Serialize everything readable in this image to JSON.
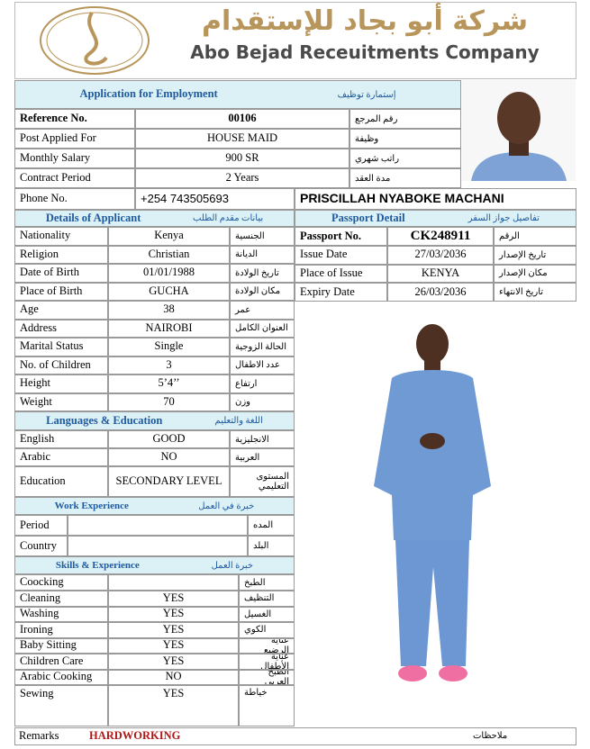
{
  "header": {
    "arabic_name": "شركة أبو بجاد للإستقدام",
    "english_name": "Abo Bejad Receuitments Company"
  },
  "application": {
    "title": "Application for Employment",
    "title_ar": "إستمارة توظيف"
  },
  "top_rows": [
    {
      "label": "Reference No.",
      "value": "00106",
      "label_ar": "رقم المرجع"
    },
    {
      "label": "Post Applied For",
      "value": "HOUSE MAID",
      "label_ar": "وظيفة"
    },
    {
      "label": "Monthly Salary",
      "value": "900 SR",
      "label_ar": "راتب شهري"
    },
    {
      "label": "Contract Period",
      "value": "2 Years",
      "label_ar": "مدة العقد"
    }
  ],
  "phone": {
    "label": "Phone No.",
    "value": "+254 743505693"
  },
  "candidate_name": "PRISCILLAH NYABOKE MACHANI",
  "applicant": {
    "title": "Details of Applicant",
    "title_ar": "بيانات مقدم الطلب",
    "rows": [
      {
        "label": "Nationality",
        "value": "Kenya",
        "label_ar": "الجنسية"
      },
      {
        "label": "Religion",
        "value": "Christian",
        "label_ar": "الديانة"
      },
      {
        "label": "Date of Birth",
        "value": "01/01/1988",
        "label_ar": "تاريخ الولادة"
      },
      {
        "label": "Place of Birth",
        "value": "GUCHA",
        "label_ar": "مكان الولادة"
      },
      {
        "label": "Age",
        "value": "38",
        "label_ar": "عمر"
      },
      {
        "label": "Address",
        "value": "NAIROBI",
        "label_ar": "العنوان الكامل"
      },
      {
        "label": "Marital Status",
        "value": "Single",
        "label_ar": "الحالة الزوجية"
      },
      {
        "label": "No. of Children",
        "value": "3",
        "label_ar": "عدد الاطفال"
      },
      {
        "label": "Height",
        "value": "5’4’’",
        "label_ar": "ارتفاع"
      },
      {
        "label": "Weight",
        "value": "70",
        "label_ar": "وزن"
      }
    ]
  },
  "passport": {
    "title": "Passport Detail",
    "title_ar": "تفاصيل جواز السفر",
    "rows": [
      {
        "label": "Passport No.",
        "value": "CK248911",
        "label_ar": "الرقم"
      },
      {
        "label": "Issue Date",
        "value": "27/03/2036",
        "label_ar": "تاريخ الإصدار"
      },
      {
        "label": "Place of Issue",
        "value": "KENYA",
        "label_ar": "مكان الإصدار"
      },
      {
        "label": "Expiry Date",
        "value": "26/03/2036",
        "label_ar": "تاريخ الانتهاء"
      }
    ]
  },
  "languages": {
    "title": "Languages & Education",
    "title_ar": "اللغة والتعليم",
    "rows": [
      {
        "label": "English",
        "value": "GOOD",
        "label_ar": "الانجليزية"
      },
      {
        "label": "Arabic",
        "value": "NO",
        "label_ar": "العربية"
      },
      {
        "label": "Education",
        "value": "SECONDARY LEVEL",
        "label_ar": "المستوى التعليمي"
      }
    ]
  },
  "work_experience": {
    "title": "Work Experience",
    "title_ar": "خبرة في العمل",
    "rows": [
      {
        "label": "Period",
        "label_ar": "المده"
      },
      {
        "label": "Country",
        "label_ar": "البلد"
      }
    ]
  },
  "skills": {
    "title": "Skills & Experience",
    "title_ar": "خبرة العمل",
    "rows": [
      {
        "label": "Coocking",
        "label_ar": "الطبخ"
      },
      {
        "label": "Cleaning",
        "value": "YES",
        "label_ar": "التنظيف"
      },
      {
        "label": "Washing",
        "value": "YES",
        "label_ar": "الغسيل"
      },
      {
        "label": "Ironing",
        "value": "YES",
        "label_ar": "الكوي"
      },
      {
        "label": "Baby Sitting",
        "value": "YES",
        "label_ar": "عناية الرضيع"
      },
      {
        "label": "Children Care",
        "value": "YES",
        "label_ar": "عناية الأطفال"
      },
      {
        "label": "Arabic Cooking",
        "value": "NO",
        "label_ar": "الطبخ العربي"
      },
      {
        "label": "Sewing",
        "value": "YES",
        "label_ar": "خياطة"
      }
    ]
  },
  "remarks": {
    "label": "Remarks",
    "value": "HARDWORKING",
    "label_ar": "ملاحظات"
  }
}
